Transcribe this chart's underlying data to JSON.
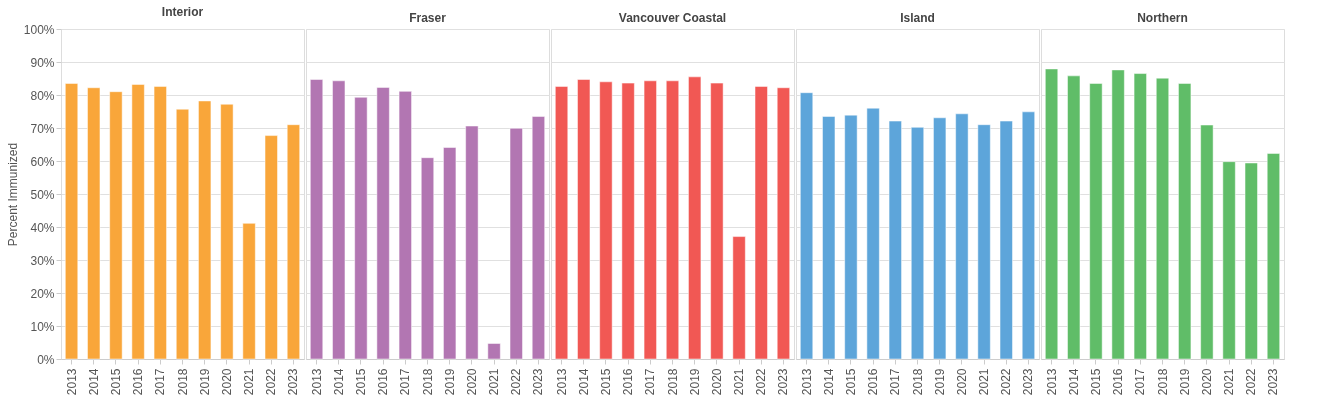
{
  "chart_data": [
    {
      "type": "bar",
      "title": "Interior",
      "ylabel": "Percent Immunized",
      "categories": [
        "2013",
        "2014",
        "2015",
        "2016",
        "2017",
        "2018",
        "2019",
        "2020",
        "2021",
        "2022",
        "2023"
      ],
      "values": [
        83.5,
        82.2,
        81.0,
        83.2,
        82.6,
        75.7,
        78.2,
        77.2,
        41.1,
        67.7,
        71.0
      ],
      "color": "#f9a63a",
      "ylim": [
        0,
        100
      ],
      "yticks": [
        {
          "value": 0,
          "label": "0%"
        },
        {
          "value": 10,
          "label": "10%"
        },
        {
          "value": 20,
          "label": "20%"
        },
        {
          "value": 30,
          "label": "30%"
        },
        {
          "value": 40,
          "label": "40%"
        },
        {
          "value": 50,
          "label": "50%"
        },
        {
          "value": 60,
          "label": "60%"
        },
        {
          "value": 70,
          "label": "70%"
        },
        {
          "value": 80,
          "label": "80%"
        },
        {
          "value": 90,
          "label": "90%"
        },
        {
          "value": 100,
          "label": "100%"
        }
      ],
      "grid": "y"
    },
    {
      "type": "bar",
      "title": "Fraser",
      "categories": [
        "2013",
        "2014",
        "2015",
        "2016",
        "2017",
        "2018",
        "2019",
        "2020",
        "2021",
        "2022",
        "2023"
      ],
      "values": [
        84.7,
        84.3,
        79.3,
        82.3,
        81.1,
        61.0,
        64.1,
        70.6,
        4.7,
        69.9,
        73.5
      ],
      "color": "#b276b2",
      "ylim": [
        0,
        100
      ],
      "yticks": [
        0,
        10,
        20,
        30,
        40,
        50,
        60,
        70,
        80,
        90,
        100
      ],
      "grid": "y",
      "tick_labels": "x"
    },
    {
      "type": "bar",
      "title": "Vancouver Coastal",
      "categories": [
        "2013",
        "2014",
        "2015",
        "2016",
        "2017",
        "2018",
        "2019",
        "2020",
        "2021",
        "2022",
        "2023"
      ],
      "values": [
        82.6,
        84.7,
        84.0,
        83.6,
        84.3,
        84.3,
        85.5,
        83.6,
        37.1,
        82.6,
        82.2
      ],
      "color": "#f15854",
      "ylim": [
        0,
        100
      ],
      "yticks": [
        0,
        10,
        20,
        30,
        40,
        50,
        60,
        70,
        80,
        90,
        100
      ],
      "grid": "y",
      "tick_labels": "x"
    },
    {
      "type": "bar",
      "title": "Island",
      "categories": [
        "2013",
        "2014",
        "2015",
        "2016",
        "2017",
        "2018",
        "2019",
        "2020",
        "2021",
        "2022",
        "2023"
      ],
      "values": [
        80.7,
        73.5,
        73.9,
        76.0,
        72.1,
        70.2,
        73.1,
        74.3,
        71.0,
        72.1,
        74.9
      ],
      "color": "#5da5da",
      "ylim": [
        0,
        100
      ],
      "yticks": [
        0,
        10,
        20,
        30,
        40,
        50,
        60,
        70,
        80,
        90,
        100
      ],
      "grid": "y",
      "tick_labels": "x"
    },
    {
      "type": "bar",
      "title": "Northern",
      "categories": [
        "2013",
        "2014",
        "2015",
        "2016",
        "2017",
        "2018",
        "2019",
        "2020",
        "2021",
        "2022",
        "2023"
      ],
      "values": [
        87.9,
        85.8,
        83.5,
        87.6,
        86.5,
        85.1,
        83.5,
        70.9,
        59.8,
        59.4,
        62.3
      ],
      "color": "#60bd68",
      "ylim": [
        0,
        100
      ],
      "yticks": [
        0,
        10,
        20,
        30,
        40,
        50,
        60,
        70,
        80,
        90,
        100
      ],
      "grid": "y",
      "tick_labels": "x"
    }
  ]
}
